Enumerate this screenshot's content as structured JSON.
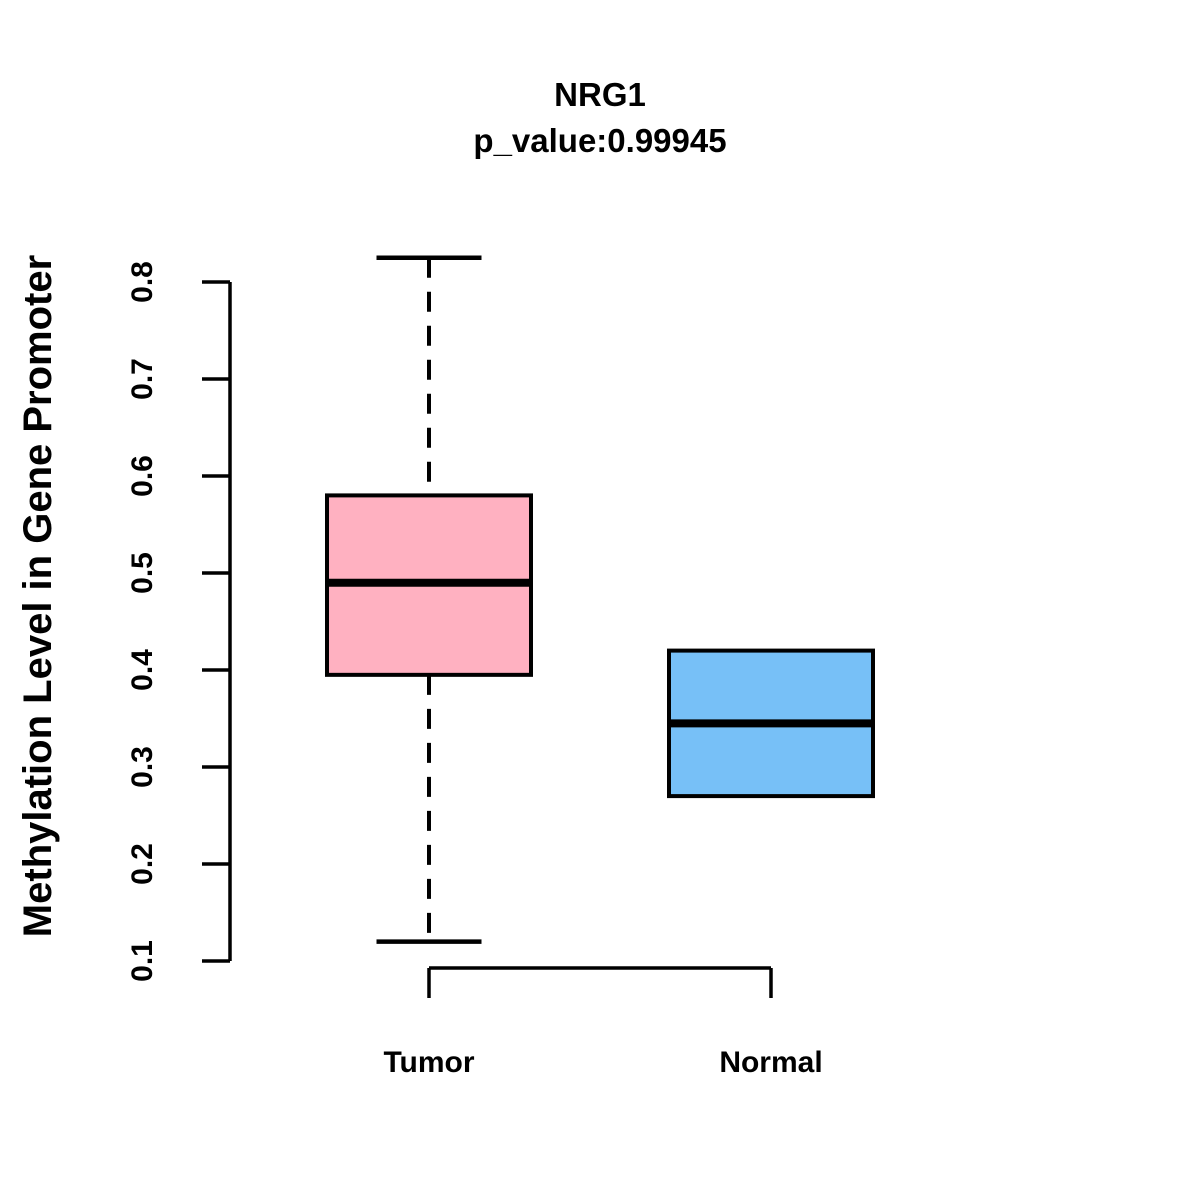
{
  "figure": {
    "background_color": "#ffffff",
    "foreground_color": "#000000"
  },
  "chart_data": {
    "type": "boxplot",
    "title": "NRG1",
    "subtitle": "p_value:0.99945",
    "p_value": 0.99945,
    "gene": "NRG1",
    "xlabel": "",
    "ylabel": "Methylation Level in Gene Promoter",
    "ylim": [
      0.1,
      0.8
    ],
    "yticks": [
      "0.1",
      "0.2",
      "0.3",
      "0.4",
      "0.5",
      "0.6",
      "0.7",
      "0.8"
    ],
    "grid": false,
    "legend": "none",
    "groups": [
      {
        "label": "Tumor",
        "fill_color": "#ffb1c1",
        "whisker_low": 0.12,
        "q1": 0.395,
        "median": 0.49,
        "q3": 0.58,
        "whisker_high": 0.825
      },
      {
        "label": "Normal",
        "fill_color": "#77c0f7",
        "whisker_low": 0.27,
        "q1": 0.27,
        "median": 0.345,
        "q3": 0.42,
        "whisker_high": 0.42
      }
    ]
  }
}
